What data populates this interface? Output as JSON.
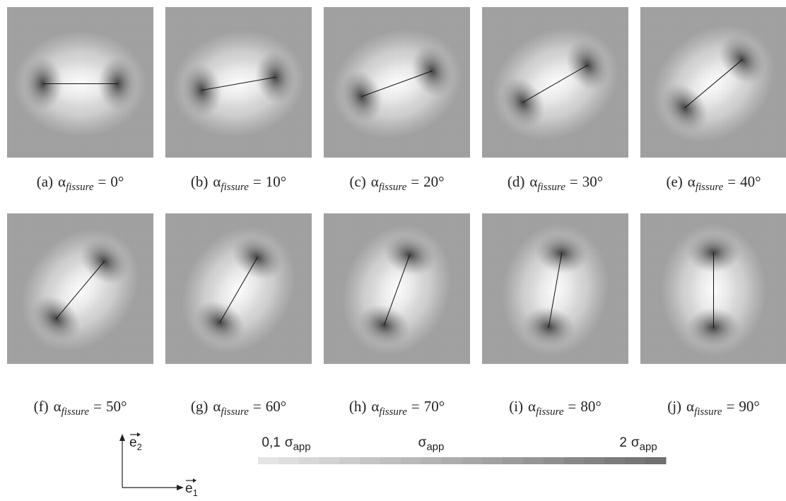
{
  "panels": [
    {
      "tag": "(a)",
      "symbol": "α",
      "subscript": "fissure",
      "relation": "=",
      "angle": {
        "value": 0,
        "label": "0°"
      }
    },
    {
      "tag": "(b)",
      "symbol": "α",
      "subscript": "fissure",
      "relation": "=",
      "angle": {
        "value": 10,
        "label": "10°"
      }
    },
    {
      "tag": "(c)",
      "symbol": "α",
      "subscript": "fissure",
      "relation": "=",
      "angle": {
        "value": 20,
        "label": "20°"
      }
    },
    {
      "tag": "(d)",
      "symbol": "α",
      "subscript": "fissure",
      "relation": "=",
      "angle": {
        "value": 30,
        "label": "30°"
      }
    },
    {
      "tag": "(e)",
      "symbol": "α",
      "subscript": "fissure",
      "relation": "=",
      "angle": {
        "value": 40,
        "label": "40°"
      }
    },
    {
      "tag": "(f)",
      "symbol": "α",
      "subscript": "fissure",
      "relation": "=",
      "angle": {
        "value": 50,
        "label": "50°"
      }
    },
    {
      "tag": "(g)",
      "symbol": "α",
      "subscript": "fissure",
      "relation": "=",
      "angle": {
        "value": 60,
        "label": "60°"
      }
    },
    {
      "tag": "(h)",
      "symbol": "α",
      "subscript": "fissure",
      "relation": "=",
      "angle": {
        "value": 70,
        "label": "70°"
      }
    },
    {
      "tag": "(i)",
      "symbol": "α",
      "subscript": "fissure",
      "relation": "=",
      "angle": {
        "value": 80,
        "label": "80°"
      }
    },
    {
      "tag": "(j)",
      "symbol": "α",
      "subscript": "fissure",
      "relation": "=",
      "angle": {
        "value": 90,
        "label": "90°"
      }
    }
  ],
  "axes": {
    "e2": {
      "symbol": "e",
      "subscript": "2"
    },
    "e1": {
      "symbol": "e",
      "subscript": "1"
    }
  },
  "colorbar": {
    "labels": [
      {
        "prefix": "0,1",
        "symbol": "σ",
        "subscript": "app"
      },
      {
        "symbol": "σ",
        "subscript": "app"
      },
      {
        "prefix": "2",
        "symbol": "σ",
        "subscript": "app"
      }
    ]
  }
}
